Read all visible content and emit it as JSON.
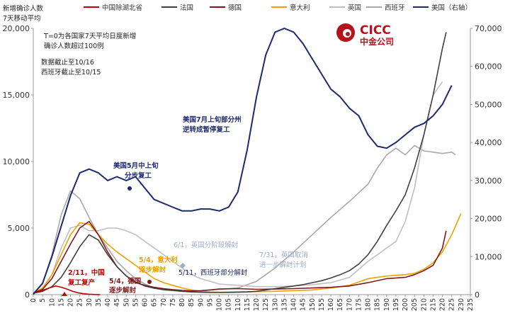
{
  "chart_data": {
    "type": "line",
    "ylabel_left": [
      "新增确诊人数",
      "7天移动平均"
    ],
    "notes": [
      "T=0为各国家7天平均日度新增",
      "确诊人数超过100例",
      "数据截止至10/16",
      "西班牙截止至10/15"
    ],
    "logo_text": [
      "CICC",
      "中金公司"
    ],
    "ylim_left": [
      0,
      20000
    ],
    "ylim_right": [
      0,
      70000
    ],
    "yticks_left": [
      "0",
      "5,000",
      "10,000",
      "15,000",
      "20,000"
    ],
    "yticks_right": [
      "0",
      "10,000",
      "20,000",
      "30,000",
      "40,000",
      "50,000",
      "60,000",
      "70,000"
    ],
    "xlim": [
      0,
      235
    ],
    "xticks": [
      "0",
      "5",
      "10",
      "15",
      "20",
      "25",
      "30",
      "35",
      "40",
      "45",
      "50",
      "55",
      "60",
      "65",
      "70",
      "75",
      "80",
      "85",
      "90",
      "95",
      "100",
      "105",
      "110",
      "115",
      "120",
      "125",
      "130",
      "135",
      "140",
      "145",
      "150",
      "155",
      "160",
      "165",
      "170",
      "175",
      "180",
      "185",
      "190",
      "195",
      "200",
      "205",
      "210",
      "215",
      "220",
      "225",
      "230",
      "235"
    ],
    "series": [
      {
        "name": "中国除湖北省",
        "color": "#c00000",
        "axis": "left",
        "x": [
          0,
          3,
          6,
          9,
          12,
          15,
          18,
          21,
          24,
          27,
          30,
          33,
          36
        ],
        "y": [
          110,
          220,
          380,
          520,
          650,
          560,
          420,
          260,
          140,
          70,
          30,
          10,
          0
        ]
      },
      {
        "name": "法国",
        "color": "#404040",
        "axis": "left",
        "x": [
          0,
          5,
          10,
          15,
          20,
          25,
          30,
          35,
          40,
          45,
          50,
          55,
          60,
          65,
          70,
          75,
          80,
          85,
          90,
          95,
          100,
          105,
          110,
          115,
          120,
          125,
          130,
          135,
          140,
          145,
          150,
          155,
          160,
          165,
          170,
          175,
          180,
          185,
          190,
          195,
          200,
          205,
          210,
          215,
          220,
          222
        ],
        "y": [
          100,
          250,
          600,
          1300,
          2400,
          3600,
          4500,
          4100,
          3000,
          2100,
          1400,
          950,
          650,
          480,
          380,
          320,
          250,
          200,
          180,
          160,
          160,
          170,
          180,
          200,
          250,
          350,
          450,
          550,
          650,
          750,
          900,
          1050,
          1250,
          1500,
          1800,
          2300,
          3000,
          4000,
          5200,
          6300,
          7500,
          9500,
          12000,
          15000,
          18500,
          19700
        ]
      },
      {
        "name": "德国",
        "color": "#7f1a1a",
        "axis": "left",
        "x": [
          0,
          5,
          10,
          15,
          20,
          25,
          30,
          35,
          40,
          45,
          50,
          55,
          60,
          65,
          70,
          75,
          80,
          85,
          90,
          95,
          100,
          110,
          120,
          130,
          140,
          150,
          160,
          170,
          180,
          190,
          200,
          205,
          210,
          215,
          220,
          222
        ],
        "y": [
          100,
          400,
          1200,
          2500,
          3800,
          5000,
          5500,
          4500,
          3200,
          2100,
          1400,
          900,
          700,
          550,
          450,
          380,
          320,
          280,
          300,
          350,
          420,
          450,
          400,
          420,
          450,
          500,
          550,
          650,
          900,
          1200,
          1300,
          1500,
          1800,
          2200,
          3500,
          4800
        ]
      },
      {
        "name": "意大利",
        "color": "#f0a000",
        "axis": "left",
        "x": [
          0,
          5,
          10,
          15,
          20,
          25,
          30,
          35,
          40,
          45,
          50,
          55,
          60,
          65,
          70,
          75,
          80,
          85,
          90,
          95,
          100,
          110,
          120,
          130,
          140,
          150,
          160,
          170,
          180,
          190,
          200,
          205,
          210,
          215,
          220,
          225,
          230
        ],
        "y": [
          100,
          500,
          1500,
          3000,
          4500,
          5400,
          5300,
          4500,
          3800,
          3200,
          2700,
          2200,
          1700,
          1200,
          900,
          700,
          500,
          350,
          250,
          200,
          180,
          200,
          230,
          250,
          300,
          350,
          500,
          700,
          1200,
          1400,
          1500,
          1600,
          1900,
          2400,
          3200,
          4500,
          6100
        ]
      },
      {
        "name": "英国",
        "color": "#c0c0c0",
        "axis": "left",
        "x": [
          0,
          5,
          10,
          15,
          20,
          25,
          30,
          35,
          40,
          45,
          50,
          55,
          60,
          65,
          70,
          75,
          80,
          85,
          90,
          95,
          100,
          110,
          120,
          130,
          140,
          150,
          160,
          170,
          180,
          190,
          195,
          200,
          205,
          210,
          215,
          220
        ],
        "y": [
          100,
          400,
          1500,
          3500,
          5000,
          5200,
          4800,
          4800,
          5000,
          5000,
          4800,
          4500,
          4000,
          3500,
          3000,
          2500,
          2000,
          1500,
          1200,
          1000,
          800,
          700,
          600,
          600,
          650,
          750,
          900,
          1300,
          2500,
          3500,
          4000,
          5500,
          8000,
          12000,
          15000,
          16000
        ]
      },
      {
        "name": "西班牙",
        "color": "#a9a9a9",
        "axis": "left",
        "x": [
          0,
          5,
          10,
          15,
          20,
          25,
          30,
          35,
          40,
          45,
          50,
          55,
          60,
          65,
          70,
          75,
          80,
          85,
          90,
          95,
          100,
          110,
          120,
          130,
          140,
          150,
          160,
          170,
          180,
          185,
          190,
          195,
          200,
          205,
          210,
          215,
          220,
          225,
          227
        ],
        "y": [
          100,
          800,
          3000,
          6000,
          7800,
          7200,
          5800,
          4500,
          3500,
          2500,
          1800,
          1200,
          800,
          500,
          350,
          300,
          250,
          250,
          280,
          350,
          400,
          500,
          1000,
          2000,
          3200,
          4500,
          5800,
          7000,
          8300,
          9500,
          10500,
          11000,
          10500,
          11200,
          10800,
          10700,
          10600,
          10700,
          10500
        ]
      },
      {
        "name": "美国（右轴）",
        "color": "#1f2a6e",
        "axis": "right",
        "x": [
          0,
          5,
          10,
          15,
          20,
          25,
          30,
          35,
          40,
          45,
          50,
          55,
          60,
          65,
          70,
          75,
          80,
          85,
          90,
          95,
          100,
          105,
          110,
          115,
          120,
          125,
          130,
          135,
          140,
          145,
          150,
          155,
          160,
          165,
          170,
          175,
          180,
          185,
          190,
          195,
          200,
          205,
          210,
          215,
          220,
          225
        ],
        "y": [
          100,
          3000,
          10000,
          18000,
          26000,
          32000,
          33000,
          32000,
          30000,
          31000,
          30000,
          31000,
          28000,
          25000,
          24000,
          23000,
          22000,
          22000,
          22500,
          22500,
          22000,
          23000,
          27000,
          38000,
          52000,
          63000,
          69000,
          70000,
          69000,
          66000,
          62000,
          58000,
          54000,
          52000,
          49000,
          47000,
          42000,
          39000,
          38500,
          40000,
          42000,
          44000,
          45000,
          47000,
          50000,
          55000
        ]
      }
    ],
    "annotations": [
      {
        "text": [
          "美国7月上旬部分州",
          "逆转成暂停复工"
        ],
        "color": "#1f2a6e"
      },
      {
        "text": [
          "美国5月中上旬",
          "分步复工"
        ],
        "color": "#1f2a6e"
      },
      {
        "text": [
          "6/1，英国分阶段解封"
        ],
        "color": "#9eaecf"
      },
      {
        "text": [
          "7/31，英国取消",
          "进一步解封计划"
        ],
        "color": "#9eaecf"
      },
      {
        "text": [
          "5/4，意大利",
          "逐步解封"
        ],
        "color": "#f0a000"
      },
      {
        "text": [
          "5/11，西班牙部分解封"
        ],
        "color": "#1f2a6e"
      },
      {
        "text": [
          "2/11，中国",
          "复工复产"
        ],
        "color": "#c00000"
      },
      {
        "text": [
          "5/4，德国",
          "逐步解封"
        ],
        "color": "#7f1a1a"
      }
    ]
  }
}
